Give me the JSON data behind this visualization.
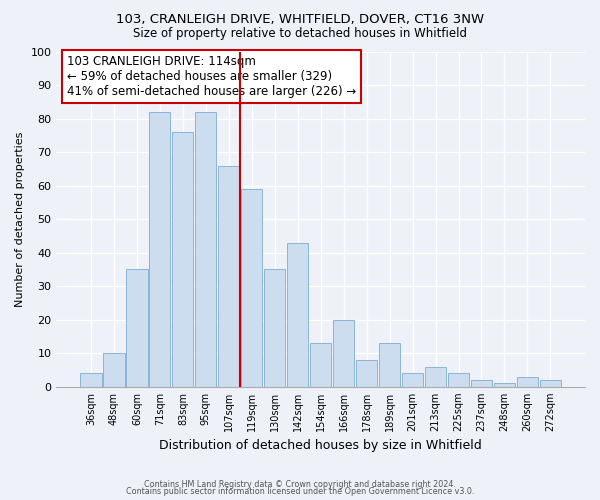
{
  "title1": "103, CRANLEIGH DRIVE, WHITFIELD, DOVER, CT16 3NW",
  "title2": "Size of property relative to detached houses in Whitfield",
  "xlabel": "Distribution of detached houses by size in Whitfield",
  "ylabel": "Number of detached properties",
  "bar_labels": [
    "36sqm",
    "48sqm",
    "60sqm",
    "71sqm",
    "83sqm",
    "95sqm",
    "107sqm",
    "119sqm",
    "130sqm",
    "142sqm",
    "154sqm",
    "166sqm",
    "178sqm",
    "189sqm",
    "201sqm",
    "213sqm",
    "225sqm",
    "237sqm",
    "248sqm",
    "260sqm",
    "272sqm"
  ],
  "bar_values": [
    4,
    10,
    35,
    82,
    76,
    82,
    66,
    59,
    35,
    43,
    13,
    20,
    8,
    13,
    4,
    6,
    4,
    2,
    1,
    3,
    2
  ],
  "bar_color": "#ccddf0",
  "bar_edge_color": "#8ab4d8",
  "vline_x_index": 7,
  "vline_color": "#cc0000",
  "annotation_title": "103 CRANLEIGH DRIVE: 114sqm",
  "annotation_line1": "← 59% of detached houses are smaller (329)",
  "annotation_line2": "41% of semi-detached houses are larger (226) →",
  "annotation_box_color": "#ffffff",
  "annotation_box_edge": "#cc0000",
  "ylim": [
    0,
    100
  ],
  "yticks": [
    0,
    10,
    20,
    30,
    40,
    50,
    60,
    70,
    80,
    90,
    100
  ],
  "footnote1": "Contains HM Land Registry data © Crown copyright and database right 2024.",
  "footnote2": "Contains public sector information licensed under the Open Government Licence v3.0.",
  "bg_color": "#eef2f8"
}
